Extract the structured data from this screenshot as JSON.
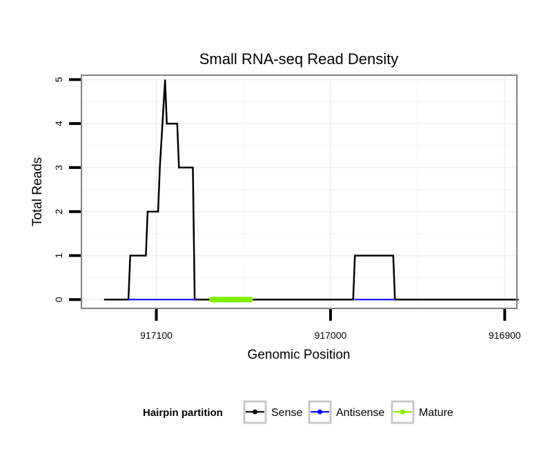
{
  "chart_data": {
    "type": "line",
    "title": "Small RNA-seq Read Density",
    "xlabel": "Genomic Position",
    "ylabel": "Total Reads",
    "x_reversed": true,
    "xlim": [
      917143,
      916893
    ],
    "ylim": [
      -0.2,
      5.1
    ],
    "x_ticks": [
      917100,
      917000,
      916900
    ],
    "x_tick_labels": [
      "917100",
      "917000",
      "916900"
    ],
    "y_ticks": [
      0,
      1,
      2,
      3,
      4,
      5
    ],
    "y_tick_labels": [
      "0",
      "1",
      "2",
      "3",
      "4",
      "5"
    ],
    "grid": true,
    "series": [
      {
        "name": "Sense",
        "color": "#000000",
        "x": [
          917130,
          917116,
          917115,
          917106,
          917105,
          917099,
          917098,
          917095,
          917094,
          917093,
          917092,
          917088,
          917087,
          917082,
          917081,
          917079,
          917078,
          917077,
          917076,
          916987,
          916986,
          916964,
          916963,
          916892
        ],
        "y": [
          0,
          0,
          1,
          1,
          2,
          2,
          3,
          5,
          4,
          4,
          4,
          4,
          3,
          3,
          3,
          3,
          0,
          0,
          0,
          0,
          1,
          1,
          0,
          0
        ]
      },
      {
        "name": "Antisense",
        "color": "#0000ff",
        "segments": [
          [
            917116,
            917077
          ],
          [
            916986,
            916963
          ]
        ],
        "y": 0
      },
      {
        "name": "Mature",
        "color": "#80ee00",
        "segments": [
          [
            917068,
            917046
          ]
        ],
        "y": 0
      }
    ],
    "legend": {
      "title": "Hairpin partition",
      "placement": "bottom",
      "items": [
        "Sense",
        "Antisense",
        "Mature"
      ]
    }
  }
}
